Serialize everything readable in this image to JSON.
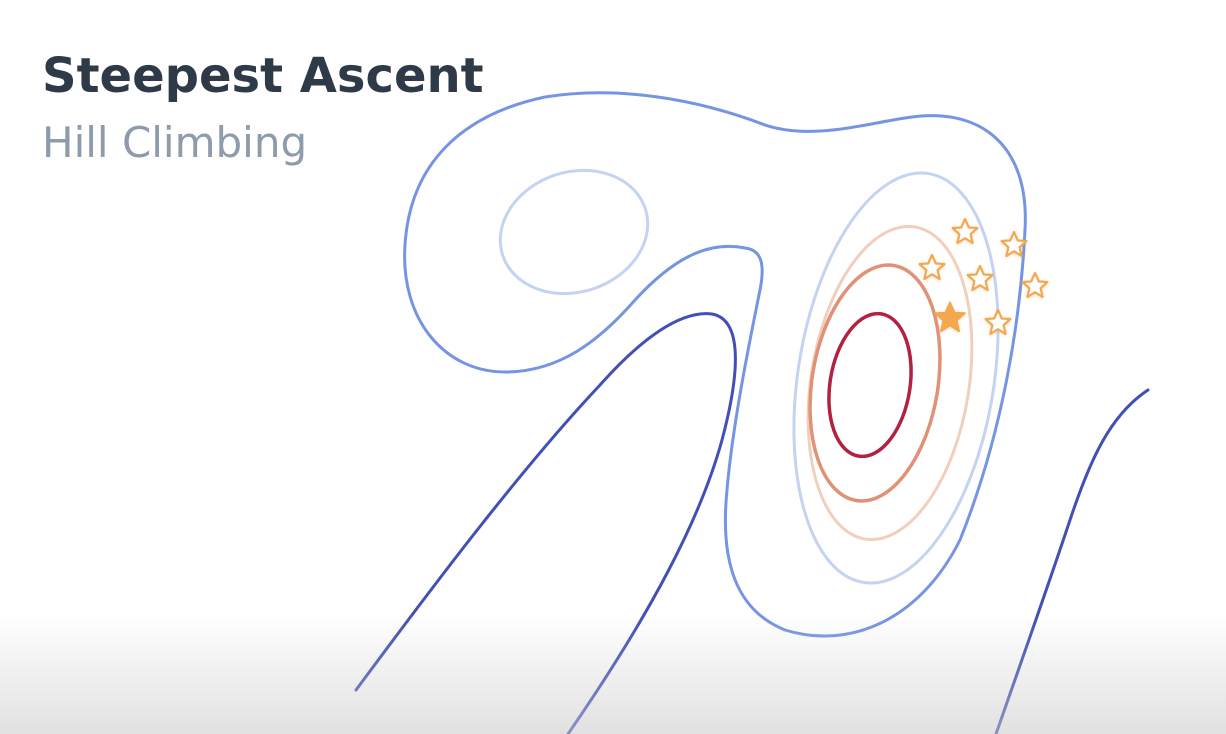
{
  "slide": {
    "title": "Steepest Ascent",
    "subtitle": "Hill Climbing"
  },
  "diagram": {
    "kind": "contour-map",
    "contour_colors": {
      "low_dark_blue": "#4150b5",
      "mid_blue": "#7594e2",
      "light_blue": "#c3d3f1",
      "pale_orange": "#f2cfbd",
      "orange": "#e09277",
      "peak_red": "#b2213f"
    },
    "marker_color": "#f3a84f",
    "markers": [
      {
        "icon": "star-outline-icon",
        "state": "neighbor"
      },
      {
        "icon": "star-outline-icon",
        "state": "neighbor"
      },
      {
        "icon": "star-outline-icon",
        "state": "neighbor"
      },
      {
        "icon": "star-outline-icon",
        "state": "neighbor"
      },
      {
        "icon": "star-outline-icon",
        "state": "neighbor"
      },
      {
        "icon": "star-outline-icon",
        "state": "neighbor"
      },
      {
        "icon": "star-filled-icon",
        "state": "current"
      }
    ]
  }
}
